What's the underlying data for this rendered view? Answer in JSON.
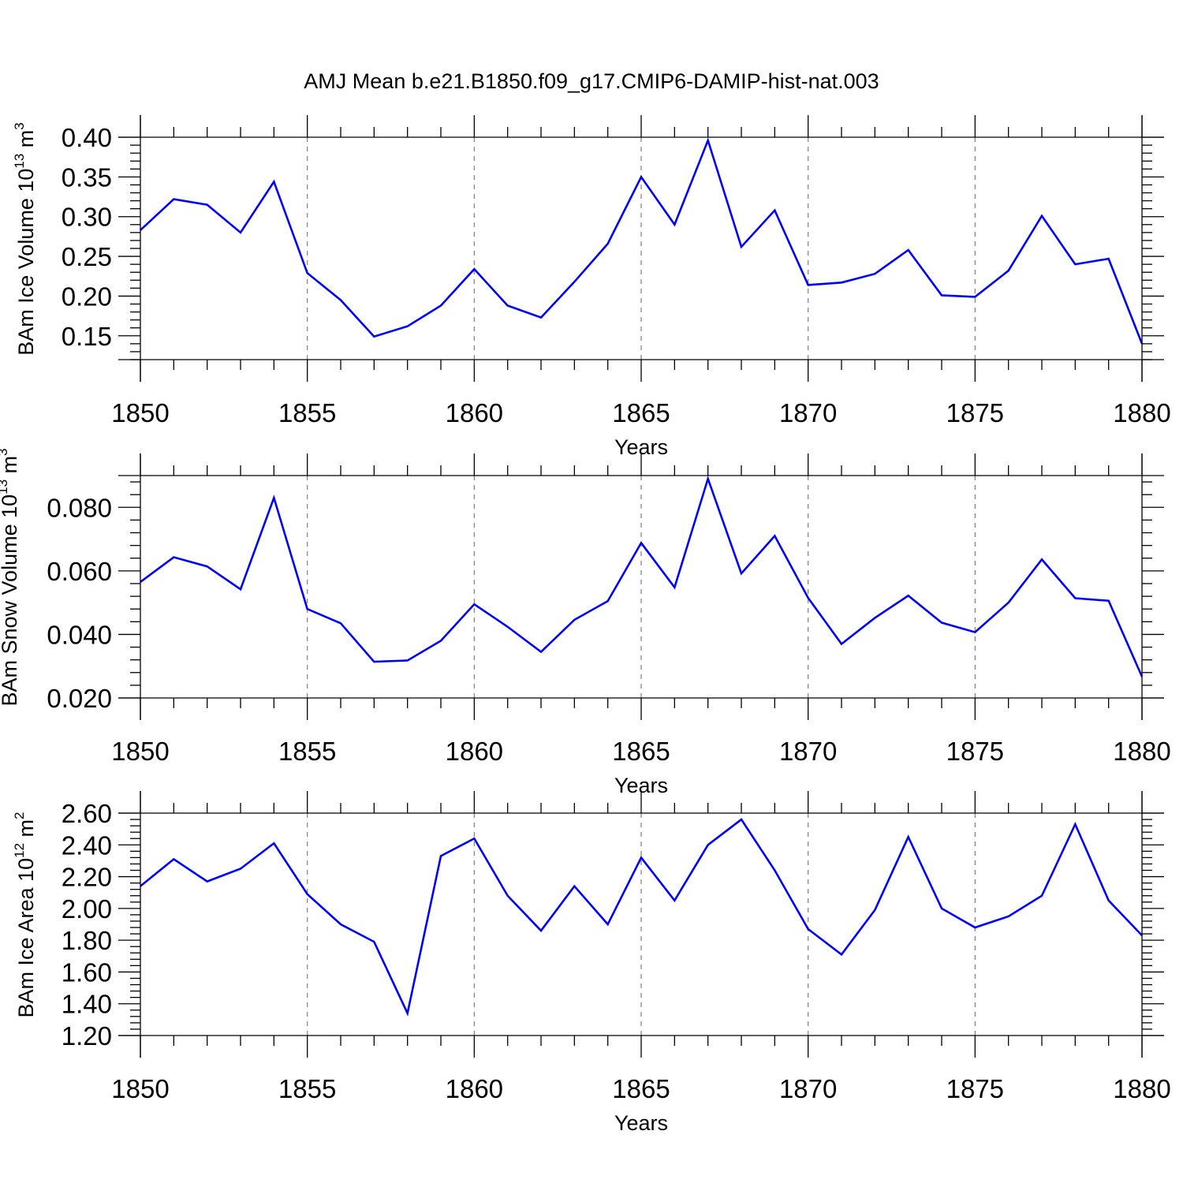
{
  "title": "AMJ Mean b.e21.B1850.f09_g17.CMIP6-DAMIP-hist-nat.003",
  "colors": {
    "series": "#0000ff",
    "axis": "#000000",
    "grid": "#808080"
  },
  "chart_data": [
    {
      "type": "line",
      "ylabel": "BAm Ice Volume 10",
      "ylabel_exp": "13",
      "ylabel_unit": "m",
      "ylabel_unit_exp": "3",
      "xlabel": "Years",
      "xlim": [
        1850,
        1880
      ],
      "ylim": [
        0.12,
        0.4
      ],
      "yticks": [
        0.15,
        0.2,
        0.25,
        0.3,
        0.35,
        0.4
      ],
      "ytick_labels": [
        "0.15",
        "0.20",
        "0.25",
        "0.30",
        "0.35",
        "0.40"
      ],
      "xticks": [
        1850,
        1855,
        1860,
        1865,
        1870,
        1875,
        1880
      ],
      "xtick_labels": [
        "1850",
        "1855",
        "1860",
        "1865",
        "1870",
        "1875",
        "1880"
      ],
      "x": [
        1850,
        1851,
        1852,
        1853,
        1854,
        1855,
        1856,
        1857,
        1858,
        1859,
        1860,
        1861,
        1862,
        1863,
        1864,
        1865,
        1866,
        1867,
        1868,
        1869,
        1870,
        1871,
        1872,
        1873,
        1874,
        1875,
        1876,
        1877,
        1878,
        1879,
        1880
      ],
      "values": [
        0.283,
        0.322,
        0.315,
        0.28,
        0.344,
        0.229,
        0.195,
        0.149,
        0.162,
        0.188,
        0.234,
        0.188,
        0.173,
        0.218,
        0.266,
        0.35,
        0.29,
        0.396,
        0.262,
        0.308,
        0.214,
        0.217,
        0.228,
        0.258,
        0.201,
        0.199,
        0.232,
        0.301,
        0.24,
        0.247,
        0.14
      ]
    },
    {
      "type": "line",
      "ylabel": "BAm Snow Volume 10",
      "ylabel_exp": "13",
      "ylabel_unit": "m",
      "ylabel_unit_exp": "3",
      "xlabel": "Years",
      "xlim": [
        1850,
        1880
      ],
      "ylim": [
        0.02,
        0.09
      ],
      "yticks": [
        0.02,
        0.04,
        0.06,
        0.08
      ],
      "ytick_labels": [
        "0.020",
        "0.040",
        "0.060",
        "0.080"
      ],
      "xticks": [
        1850,
        1855,
        1860,
        1865,
        1870,
        1875,
        1880
      ],
      "xtick_labels": [
        "1850",
        "1855",
        "1860",
        "1865",
        "1870",
        "1875",
        "1880"
      ],
      "x": [
        1850,
        1851,
        1852,
        1853,
        1854,
        1855,
        1856,
        1857,
        1858,
        1859,
        1860,
        1861,
        1862,
        1863,
        1864,
        1865,
        1866,
        1867,
        1868,
        1869,
        1870,
        1871,
        1872,
        1873,
        1874,
        1875,
        1876,
        1877,
        1878,
        1879,
        1880
      ],
      "values": [
        0.0565,
        0.0643,
        0.0614,
        0.0542,
        0.083,
        0.048,
        0.0435,
        0.0314,
        0.0318,
        0.038,
        0.0495,
        0.0424,
        0.0345,
        0.0446,
        0.0505,
        0.0688,
        0.0548,
        0.089,
        0.0592,
        0.071,
        0.0515,
        0.037,
        0.0452,
        0.0522,
        0.0437,
        0.0407,
        0.05,
        0.0636,
        0.0514,
        0.0506,
        0.0267
      ]
    },
    {
      "type": "line",
      "ylabel": "BAm Ice Area 10",
      "ylabel_exp": "12",
      "ylabel_unit": "m",
      "ylabel_unit_exp": "2",
      "xlabel": "Years",
      "xlim": [
        1850,
        1880
      ],
      "ylim": [
        1.2,
        2.6
      ],
      "yticks": [
        1.2,
        1.4,
        1.6,
        1.8,
        2.0,
        2.2,
        2.4,
        2.6
      ],
      "ytick_labels": [
        "1.20",
        "1.40",
        "1.60",
        "1.80",
        "2.00",
        "2.20",
        "2.40",
        "2.60"
      ],
      "xticks": [
        1850,
        1855,
        1860,
        1865,
        1870,
        1875,
        1880
      ],
      "xtick_labels": [
        "1850",
        "1855",
        "1860",
        "1865",
        "1870",
        "1875",
        "1880"
      ],
      "x": [
        1850,
        1851,
        1852,
        1853,
        1854,
        1855,
        1856,
        1857,
        1858,
        1859,
        1860,
        1861,
        1862,
        1863,
        1864,
        1865,
        1866,
        1867,
        1868,
        1869,
        1870,
        1871,
        1872,
        1873,
        1874,
        1875,
        1876,
        1877,
        1878,
        1879,
        1880
      ],
      "values": [
        2.14,
        2.31,
        2.17,
        2.25,
        2.41,
        2.09,
        1.9,
        1.79,
        1.34,
        2.33,
        2.44,
        2.08,
        1.86,
        2.14,
        1.9,
        2.32,
        2.05,
        2.4,
        2.56,
        2.24,
        1.87,
        1.71,
        1.99,
        2.45,
        2.0,
        1.88,
        1.95,
        2.08,
        2.53,
        2.05,
        1.83
      ]
    }
  ]
}
